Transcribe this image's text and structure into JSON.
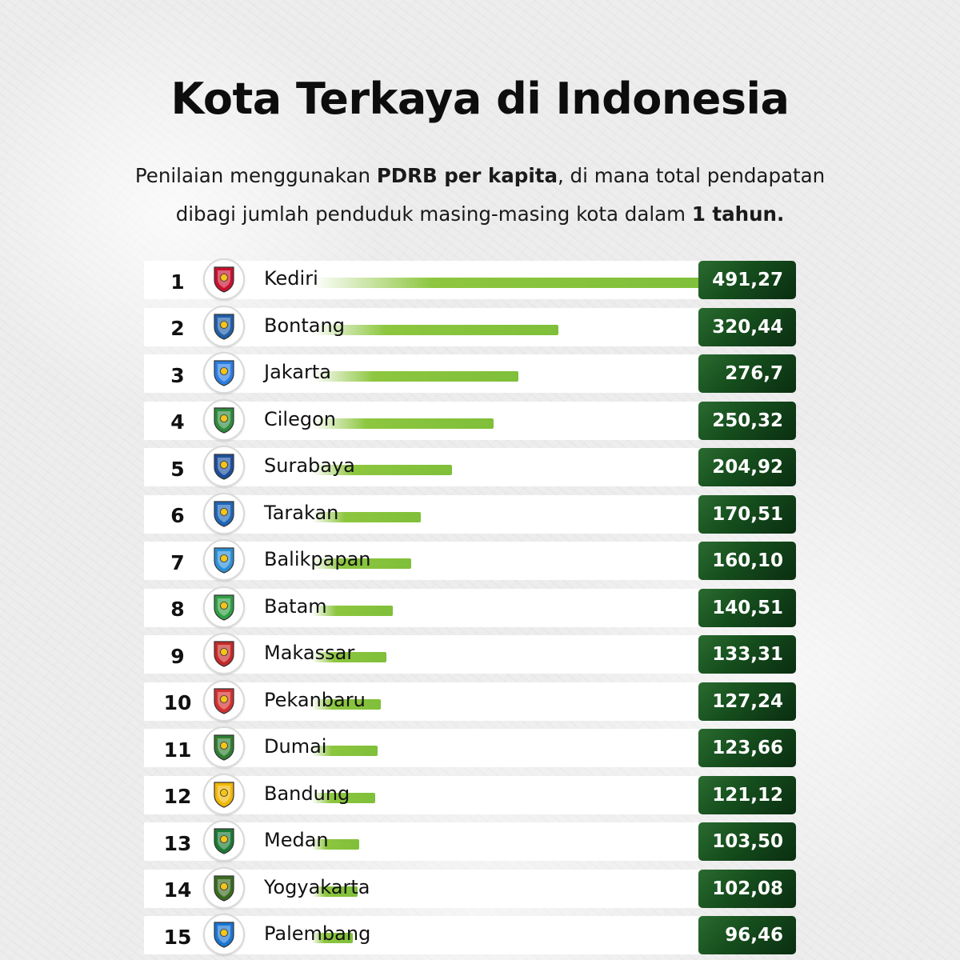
{
  "title": "Kota Terkaya di Indonesia",
  "subtitle": {
    "line1_pre": "Penilaian menggunakan ",
    "line1_bold": "PDRB per kapita",
    "line1_post": ", di mana total pendapatan",
    "line2_pre": "dibagi jumlah penduduk masing-masing kota dalam ",
    "line2_bold": "1 tahun."
  },
  "colors": {
    "bar": "#8dc63f",
    "value_box": "#154d1d",
    "value_text": "#ffffff"
  },
  "chart_data": {
    "type": "bar",
    "orientation": "horizontal",
    "title": "Kota Terkaya di Indonesia",
    "xlabel": "",
    "ylabel": "",
    "xlim": [
      0,
      491.27
    ],
    "grid": false,
    "categories": [
      "Kediri",
      "Bontang",
      "Jakarta",
      "Cilegon",
      "Surabaya",
      "Tarakan",
      "Balikpapan",
      "Batam",
      "Makassar",
      "Pekanbaru",
      "Dumai",
      "Bandung",
      "Medan",
      "Yogyakarta",
      "Palembang"
    ],
    "ranks": [
      "1",
      "2",
      "3",
      "4",
      "5",
      "6",
      "7",
      "8",
      "9",
      "10",
      "11",
      "12",
      "13",
      "14",
      "15"
    ],
    "values": [
      491.27,
      320.44,
      276.7,
      250.32,
      204.92,
      170.51,
      160.1,
      140.51,
      133.31,
      127.24,
      123.66,
      121.12,
      103.5,
      102.08,
      96.46
    ],
    "value_labels": [
      "491,27",
      "320,44",
      "276,7",
      "250,32",
      "204,92",
      "170,51",
      "160,10",
      "140,51",
      "133,31",
      "127,24",
      "123,66",
      "121,12",
      "103,50",
      "102,08",
      "96,46"
    ],
    "logos": [
      "kediri-emblem-icon",
      "bontang-emblem-icon",
      "jakarta-emblem-icon",
      "cilegon-emblem-icon",
      "surabaya-emblem-icon",
      "tarakan-emblem-icon",
      "balikpapan-emblem-icon",
      "batam-emblem-icon",
      "makassar-emblem-icon",
      "pekanbaru-emblem-icon",
      "dumai-emblem-icon",
      "bandung-emblem-icon",
      "medan-emblem-icon",
      "yogyakarta-emblem-icon",
      "palembang-emblem-icon"
    ],
    "logo_colors": [
      "#c8102e",
      "#1f5fa8",
      "#2a7de1",
      "#2e8b3d",
      "#1c4f9c",
      "#1e66b8",
      "#2b8fd6",
      "#2f9e44",
      "#c62828",
      "#d32f2f",
      "#2e7d32",
      "#f2b705",
      "#1b7a34",
      "#3a6b1f",
      "#1976d2"
    ]
  }
}
